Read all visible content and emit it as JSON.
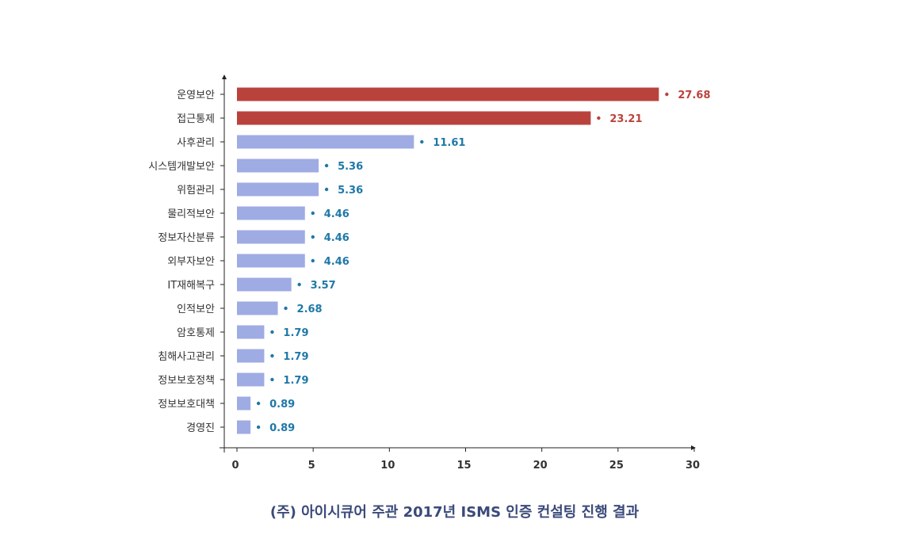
{
  "caption": "(주) 아이시큐어 주관 2017년 ISMS 인증 컨설팅 진행 결과",
  "colors": {
    "highlight_bar": "#b9433c",
    "normal_bar": "#9fabe3",
    "highlight_label": "#b9433c",
    "normal_label": "#1e78a8",
    "axis": "#222222"
  },
  "chart_data": {
    "type": "bar",
    "orientation": "horizontal",
    "categories": [
      "운영보안",
      "접근통제",
      "사후관리",
      "시스템개발보안",
      "위험관리",
      "물리적보안",
      "정보자산분류",
      "외부자보안",
      "IT재해복구",
      "인적보안",
      "암호통제",
      "침해사고관리",
      "정보보호정책",
      "정보보호대책",
      "경영진"
    ],
    "values": [
      27.68,
      23.21,
      11.61,
      5.36,
      5.36,
      4.46,
      4.46,
      4.46,
      3.57,
      2.68,
      1.79,
      1.79,
      1.79,
      0.89,
      0.89
    ],
    "value_labels": [
      "27.68",
      "23.21",
      "11.61",
      "5.36",
      "5.36",
      "4.46",
      "4.46",
      "4.46",
      "3.57",
      "2.68",
      "1.79",
      "1.79",
      "1.79",
      "0.89",
      "0.89"
    ],
    "highlighted": [
      true,
      true,
      false,
      false,
      false,
      false,
      false,
      false,
      false,
      false,
      false,
      false,
      false,
      false,
      false
    ],
    "x_ticks": [
      "0",
      "5",
      "10",
      "15",
      "20",
      "25",
      "30"
    ],
    "xlim": [
      0,
      30
    ],
    "title": "",
    "xlabel": "",
    "ylabel": "",
    "grid": false,
    "legend": "none"
  }
}
